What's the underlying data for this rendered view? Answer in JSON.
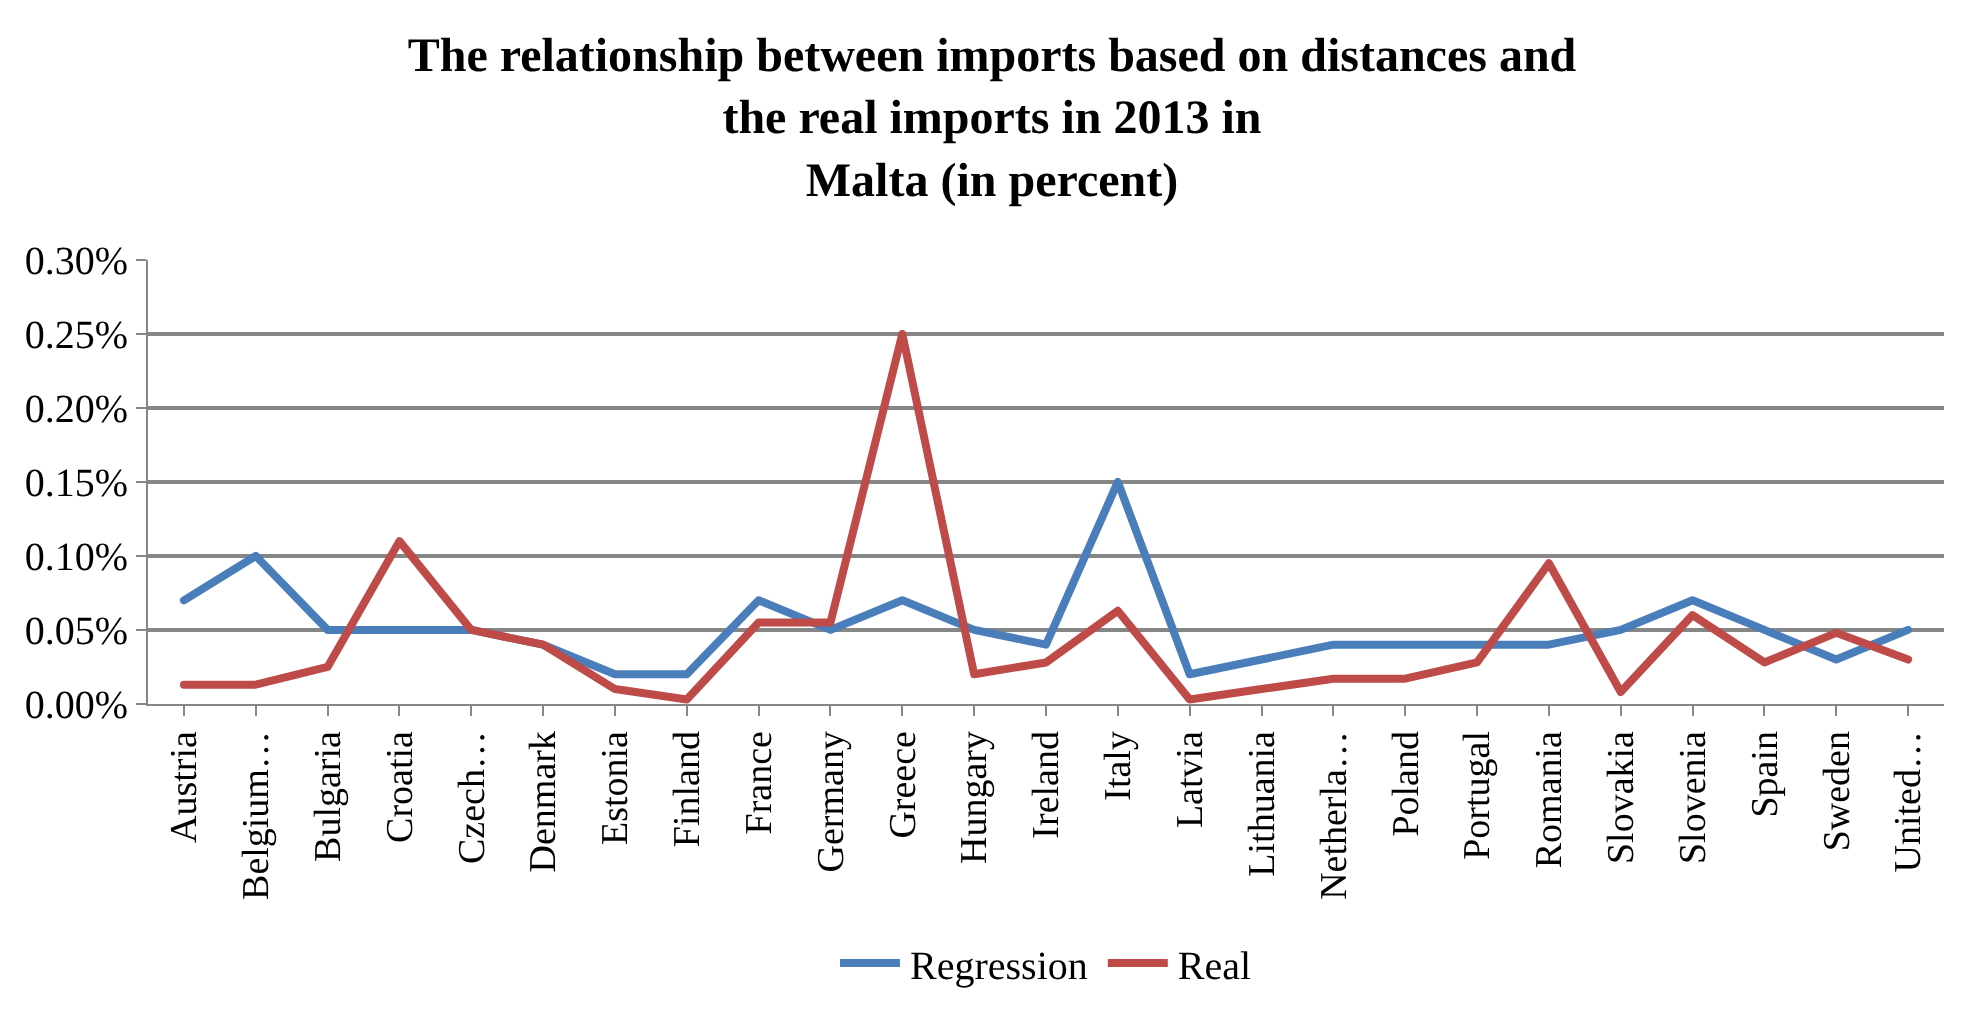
{
  "chart_data": {
    "type": "line",
    "title": "The relationship between imports based on distances and\nthe real imports in 2013 in\nMalta (in percent)",
    "categories": [
      "Austria",
      "Belgium…",
      "Bulgaria",
      "Croatia",
      "Czech…",
      "Denmark",
      "Estonia",
      "Finland",
      "France",
      "Germany",
      "Greece",
      "Hungary",
      "Ireland",
      "Italy",
      "Latvia",
      "Lithuania",
      "Netherla…",
      "Poland",
      "Portugal",
      "Romania",
      "Slovakia",
      "Slovenia",
      "Spain",
      "Sweden",
      "United…"
    ],
    "series": [
      {
        "name": "Regression",
        "color": "#4a7ebb",
        "values": [
          0.07,
          0.1,
          0.05,
          0.05,
          0.05,
          0.04,
          0.02,
          0.02,
          0.07,
          0.05,
          0.07,
          0.05,
          0.04,
          0.15,
          0.02,
          0.03,
          0.04,
          0.04,
          0.04,
          0.04,
          0.05,
          0.07,
          0.05,
          0.03,
          0.05
        ]
      },
      {
        "name": "Real",
        "color": "#be4b48",
        "values": [
          0.013,
          0.013,
          0.025,
          0.11,
          0.05,
          0.04,
          0.01,
          0.003,
          0.055,
          0.055,
          0.25,
          0.02,
          0.028,
          0.063,
          0.003,
          0.01,
          0.017,
          0.017,
          0.028,
          0.095,
          0.008,
          0.06,
          0.028,
          0.048,
          0.03
        ]
      }
    ],
    "ylim": [
      0,
      0.3
    ],
    "yticks": [
      {
        "value": 0,
        "label": "0.00%"
      },
      {
        "value": 0.05,
        "label": "0.05%"
      },
      {
        "value": 0.1,
        "label": "0.10%"
      },
      {
        "value": 0.15,
        "label": "0.15%"
      },
      {
        "value": 0.2,
        "label": "0.20%"
      },
      {
        "value": 0.25,
        "label": "0.25%"
      },
      {
        "value": 0.3,
        "label": "0.30%"
      }
    ],
    "grid": "y",
    "legend": "bottom",
    "marker": "none",
    "line_style": "solid"
  }
}
